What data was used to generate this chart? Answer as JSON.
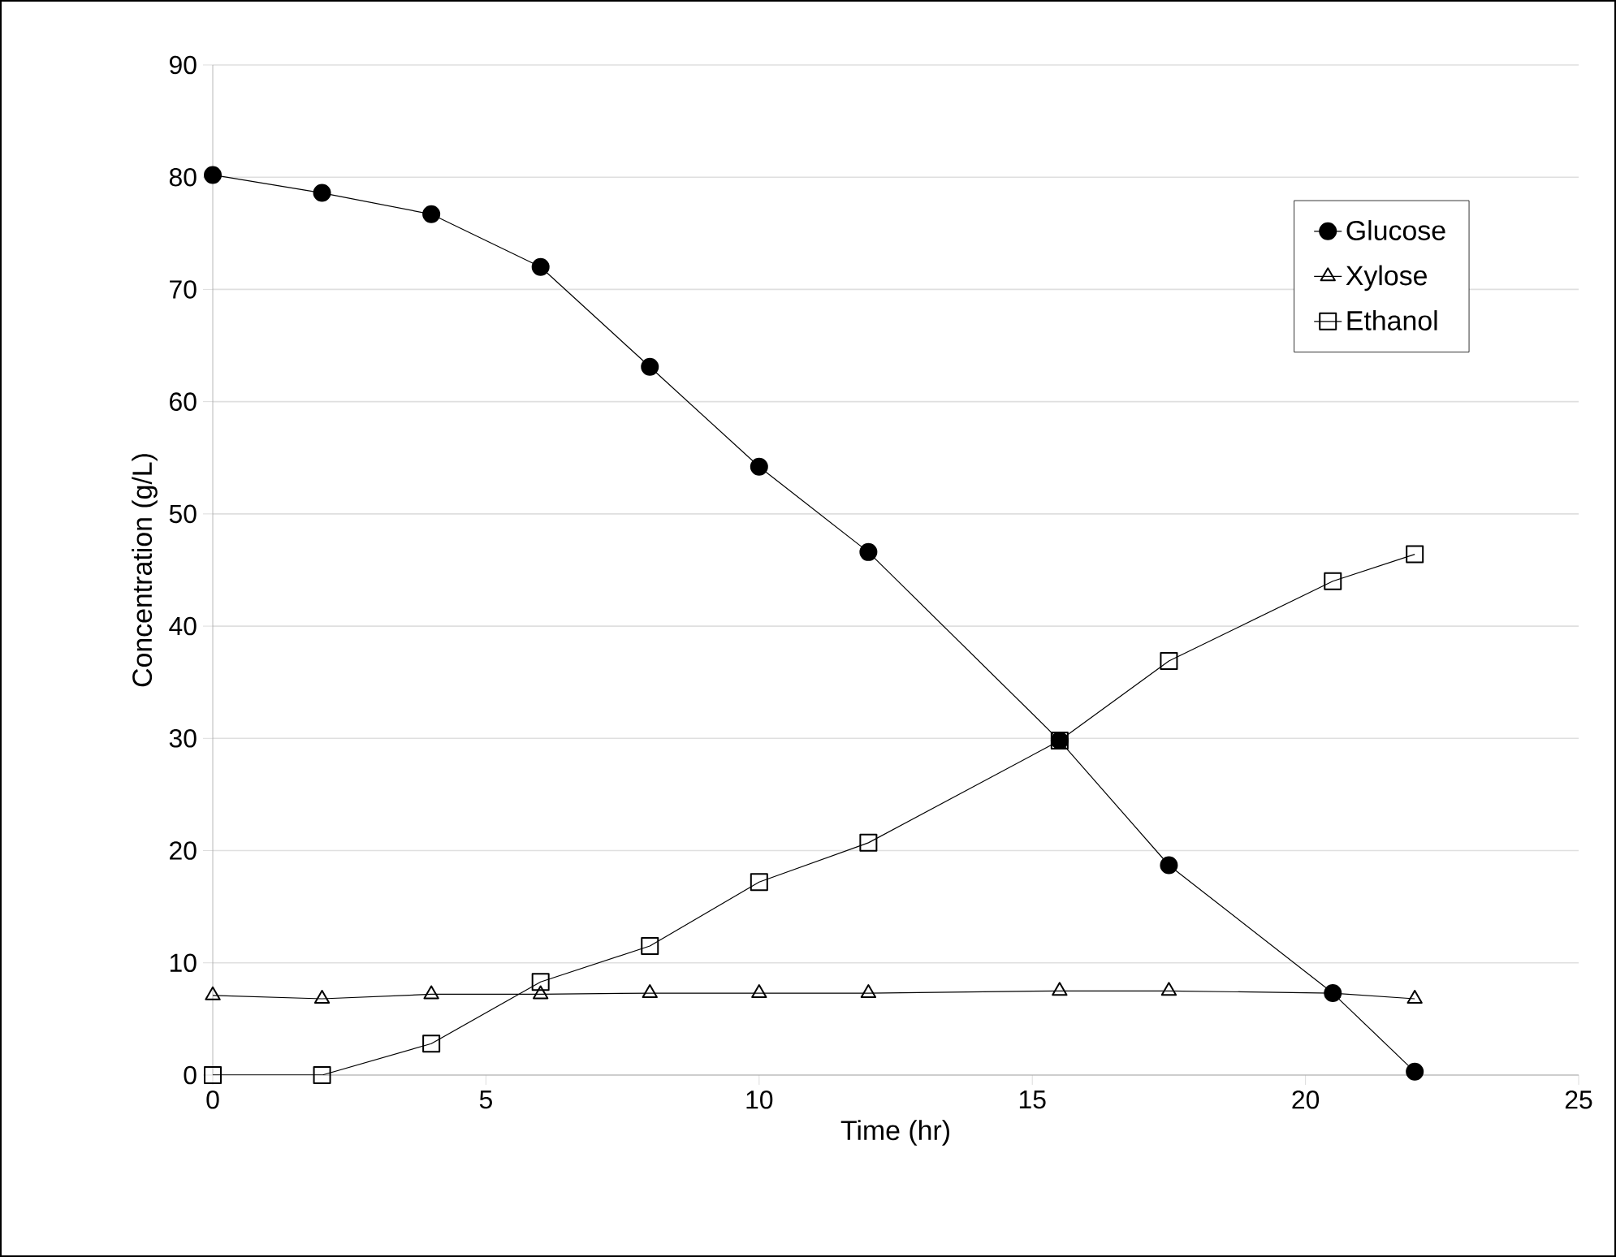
{
  "chart_data": {
    "type": "line",
    "xlabel": "Time (hr)",
    "ylabel": "Concentration (g/L)",
    "x": [
      0,
      2,
      4,
      6,
      8,
      10,
      12,
      15.5,
      17.5,
      20.5,
      22
    ],
    "series": [
      {
        "name": "Glucose",
        "color": "#000000",
        "marker": "circle",
        "values": [
          80.2,
          78.6,
          76.7,
          72.0,
          63.1,
          54.2,
          46.6,
          29.8,
          18.7,
          7.3,
          0.3
        ]
      },
      {
        "name": "Xylose",
        "color": "#000000",
        "marker": "triangle",
        "values": [
          7.1,
          6.8,
          7.2,
          7.2,
          7.3,
          7.3,
          7.3,
          7.5,
          7.5,
          7.3,
          6.8
        ]
      },
      {
        "name": "Ethanol",
        "color": "#000000",
        "marker": "square",
        "values": [
          0,
          0,
          2.8,
          8.3,
          11.5,
          17.2,
          20.7,
          29.8,
          36.9,
          44.0,
          46.4
        ]
      }
    ],
    "xlim": [
      0,
      25
    ],
    "xticks": [
      0,
      5,
      10,
      15,
      20,
      25
    ],
    "ylim": [
      0,
      90
    ],
    "yticks": [
      0,
      10,
      20,
      30,
      40,
      50,
      60,
      70,
      80,
      90
    ],
    "grid": "y",
    "legend": "top right",
    "line_style": "solid"
  }
}
